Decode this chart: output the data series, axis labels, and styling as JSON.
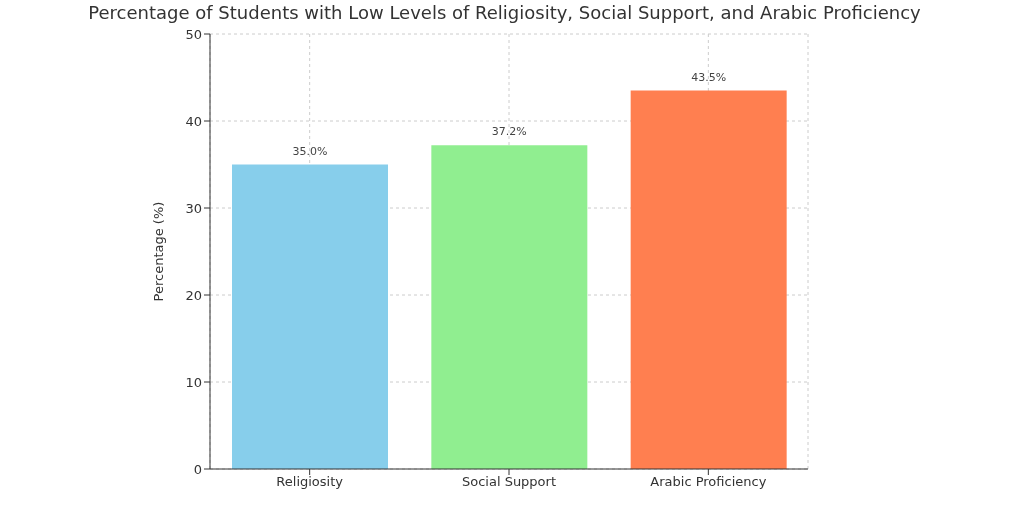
{
  "chart_data": {
    "type": "bar",
    "title": "Percentage of Students with Low Levels of Religiosity, Social Support, and Arabic Proficiency",
    "ylabel": "Percentage (%)",
    "categories": [
      "Religiosity",
      "Social Support",
      "Arabic Proficiency"
    ],
    "values": [
      35.0,
      37.2,
      43.5
    ],
    "value_labels": [
      "35.0%",
      "37.2%",
      "43.5%"
    ],
    "colors": [
      "#87ceeb",
      "#90ee90",
      "#ff7f50"
    ],
    "ylim": [
      0,
      50
    ],
    "yticks": [
      0,
      10,
      20,
      30,
      40,
      50
    ],
    "grid": true
  }
}
